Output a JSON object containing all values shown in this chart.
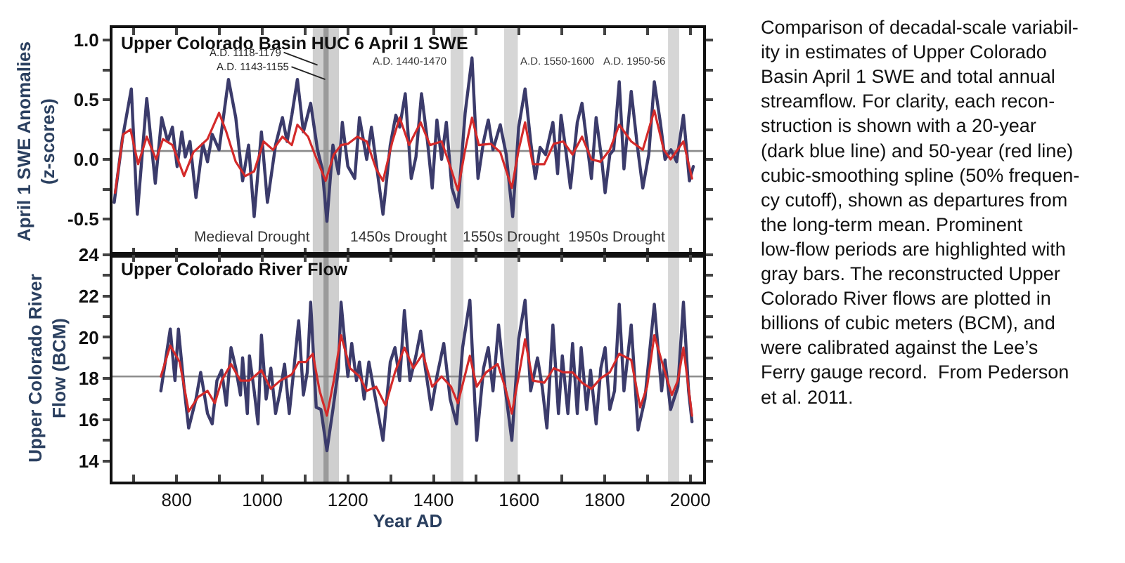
{
  "chart_data": [
    {
      "type": "line",
      "title": "Upper Colorado Basin HUC 6 April 1 SWE",
      "ylabel": "April 1 SWE Anomalies\n(z-scores)",
      "xlim": [
        650,
        2030
      ],
      "xticks": [
        {
          "value": 700,
          "label": null
        },
        {
          "value": 800,
          "label": null
        },
        {
          "value": 900,
          "label": null
        },
        {
          "value": 1000,
          "label": null
        },
        {
          "value": 1100,
          "label": null
        },
        {
          "value": 1200,
          "label": null
        },
        {
          "value": 1300,
          "label": null
        },
        {
          "value": 1400,
          "label": null
        },
        {
          "value": 1500,
          "label": null
        },
        {
          "value": 1600,
          "label": null
        },
        {
          "value": 1700,
          "label": null
        },
        {
          "value": 1800,
          "label": null
        },
        {
          "value": 1900,
          "label": null
        },
        {
          "value": 2000,
          "label": null
        }
      ],
      "ylim": [
        -0.8,
        1.1
      ],
      "yticks": [
        {
          "value": -0.5,
          "label": "-0.5"
        },
        {
          "value": -0.25,
          "label": null
        },
        {
          "value": 0,
          "label": "0.0"
        },
        {
          "value": 0.25,
          "label": null
        },
        {
          "value": 0.5,
          "label": "0.5"
        },
        {
          "value": 0.75,
          "label": null
        },
        {
          "value": 1.0,
          "label": "1.0"
        }
      ],
      "tick_labels": "y",
      "grid": false,
      "series": [
        {
          "color": "#3b3b6b",
          "x": [
            654,
            673,
            694,
            708,
            730,
            750,
            765,
            779,
            790,
            801,
            812,
            820,
            831,
            845,
            861,
            872,
            883,
            899,
            921,
            938,
            954,
            968,
            981,
            998,
            1012,
            1031,
            1047,
            1058,
            1069,
            1082,
            1096,
            1113,
            1129,
            1140,
            1151,
            1165,
            1178,
            1187,
            1200,
            1216,
            1227,
            1244,
            1255,
            1282,
            1299,
            1312,
            1321,
            1334,
            1348,
            1359,
            1372,
            1386,
            1397,
            1408,
            1419,
            1430,
            1443,
            1457,
            1474,
            1490,
            1504,
            1517,
            1528,
            1539,
            1556,
            1570,
            1585,
            1599,
            1614,
            1627,
            1638,
            1649,
            1662,
            1679,
            1690,
            1698,
            1709,
            1720,
            1736,
            1747,
            1758,
            1769,
            1780,
            1793,
            1801,
            1812,
            1821,
            1834,
            1845,
            1862,
            1876,
            1889,
            1903,
            1916,
            1930,
            1941,
            1955,
            1968,
            1984,
            1998,
            2007
          ],
          "values": [
            -0.36,
            0.17,
            0.59,
            -0.46,
            0.51,
            -0.2,
            0.35,
            0.15,
            0.27,
            -0.06,
            0.23,
            0.02,
            0.15,
            -0.32,
            0.13,
            -0.02,
            0.21,
            0.08,
            0.67,
            0.35,
            -0.18,
            0.12,
            -0.48,
            0.23,
            -0.36,
            0.12,
            0.35,
            0.15,
            0.37,
            0.67,
            0.23,
            0.47,
            0.08,
            -0.08,
            -0.52,
            0.12,
            -0.12,
            0.31,
            -0.06,
            -0.16,
            0.35,
            0.0,
            0.27,
            -0.46,
            0.12,
            0.37,
            0.27,
            0.55,
            -0.16,
            0.02,
            0.55,
            0.15,
            -0.24,
            0.33,
            0.0,
            0.31,
            -0.24,
            -0.4,
            0.39,
            0.85,
            -0.16,
            0.15,
            0.33,
            0.08,
            0.29,
            0.04,
            -0.48,
            0.27,
            0.59,
            0.15,
            -0.16,
            0.1,
            0.04,
            0.31,
            -0.12,
            0.37,
            0.08,
            -0.24,
            0.31,
            0.47,
            0.15,
            -0.16,
            0.35,
            0.0,
            -0.28,
            0.04,
            0.08,
            0.65,
            -0.08,
            0.57,
            0.12,
            -0.24,
            0.04,
            0.65,
            0.31,
            0.0,
            0.08,
            -0.02,
            0.37,
            -0.18,
            -0.06
          ]
        },
        {
          "color": "#d42a2a",
          "x": [
            656,
            675,
            692,
            710,
            730,
            752,
            768,
            790,
            817,
            839,
            872,
            899,
            916,
            938,
            960,
            981,
            1003,
            1025,
            1047,
            1069,
            1082,
            1107,
            1123,
            1148,
            1167,
            1184,
            1200,
            1222,
            1244,
            1266,
            1282,
            1304,
            1321,
            1343,
            1370,
            1392,
            1419,
            1441,
            1457,
            1474,
            1490,
            1506,
            1534,
            1556,
            1583,
            1599,
            1614,
            1632,
            1659,
            1681,
            1703,
            1725,
            1747,
            1769,
            1790,
            1812,
            1834,
            1862,
            1889,
            1916,
            1938,
            1954,
            1984,
            2004
          ],
          "values": [
            -0.28,
            0.21,
            0.25,
            -0.04,
            0.19,
            0.0,
            0.17,
            0.12,
            -0.14,
            0.06,
            0.17,
            0.39,
            0.23,
            -0.02,
            -0.14,
            -0.1,
            0.15,
            0.08,
            0.19,
            0.12,
            0.29,
            0.19,
            0.04,
            -0.18,
            0.04,
            0.12,
            0.13,
            0.19,
            0.15,
            -0.08,
            -0.18,
            0.15,
            0.35,
            0.12,
            0.31,
            0.12,
            0.15,
            -0.08,
            -0.26,
            0.08,
            0.35,
            0.12,
            0.13,
            0.06,
            -0.24,
            0.08,
            0.31,
            -0.04,
            -0.04,
            0.13,
            0.15,
            0.04,
            0.19,
            0.0,
            -0.02,
            0.08,
            0.29,
            0.15,
            0.08,
            0.41,
            0.08,
            0.0,
            0.15,
            -0.16
          ]
        }
      ],
      "ref_lines": [
        {
          "axis": "y",
          "value": 0.07,
          "color": "#8c8c8c"
        }
      ],
      "bands": [
        {
          "axis": "x",
          "from": 1118,
          "to": 1179,
          "color": "#cfcfcf"
        },
        {
          "axis": "x",
          "from": 1143,
          "to": 1155,
          "color": "#9a9a9a"
        },
        {
          "axis": "x",
          "from": 1440,
          "to": 1470,
          "color": "#d6d6d6"
        },
        {
          "axis": "x",
          "from": 1565,
          "to": 1597,
          "color": "#d6d6d6"
        },
        {
          "axis": "x",
          "from": 1948,
          "to": 1974,
          "color": "#d6d6d6"
        }
      ],
      "annotations": [
        {
          "text": "A.D. 1118-1179",
          "x": 1129,
          "y": 0.79
        },
        {
          "text": "A.D. 1143-1155",
          "x": 1147,
          "y": 0.67
        },
        {
          "text": "A.D. 1440-1470",
          "x": 1440,
          "y": 0.82
        },
        {
          "text": "A.D. 1550-1600",
          "x": 1597,
          "y": 0.82
        },
        {
          "text": "A.D. 1950-56",
          "x": 1948,
          "y": 0.82
        },
        {
          "text": "Medieval Drought",
          "x": 1118,
          "y": -0.65
        },
        {
          "text": "1450s Drought",
          "x": 1440,
          "y": -0.65
        },
        {
          "text": "1550s Drought",
          "x": 1581,
          "y": -0.65
        },
        {
          "text": "1950s Drought",
          "x": 1948,
          "y": -0.65
        },
        "Comparison of decadal-scale variabil-\nity in estimates of Upper Colorado\nBasin April 1 SWE and total annual\nstreamflow. For clarity, each recon-\nstruction is shown with a 20-year\n(dark blue line) and 50-year (red line)\ncubic-smoothing spline (50% frequen-\ncy cutoff), shown as departures from\nthe long-term mean. Prominent\nlow-flow periods are highlighted with\ngray bars. The reconstructed Upper\nColorado River flows are plotted in\nbillions of cubic meters (BCM), and\nwere calibrated against the Lee’s\nFerry gauge record.  From Pederson\net al. 2011."
      ]
    },
    {
      "type": "line",
      "title": "Upper Colorado River Flow",
      "ylabel": "Upper Colorado River\nFlow (BCM)",
      "xlabel": "Year AD",
      "xlim": [
        650,
        2030
      ],
      "xticks": [
        {
          "value": 700,
          "label": null
        },
        800,
        {
          "value": 900,
          "label": null
        },
        1000,
        {
          "value": 1100,
          "label": null
        },
        1200,
        {
          "value": 1300,
          "label": null
        },
        1400,
        {
          "value": 1500,
          "label": null
        },
        1600,
        {
          "value": 1700,
          "label": null
        },
        1800,
        {
          "value": 1900,
          "label": null
        },
        2000
      ],
      "ylim": [
        13,
        24
      ],
      "yticks": [
        14,
        {
          "value": 15,
          "label": null
        },
        16,
        {
          "value": 17,
          "label": null
        },
        18,
        {
          "value": 19,
          "label": null
        },
        20,
        {
          "value": 21,
          "label": null
        },
        22,
        {
          "value": 23,
          "label": null
        },
        24
      ],
      "grid": false,
      "series": [
        {
          "color": "#3b3b6b",
          "x": [
            763,
            785,
            796,
            804,
            817,
            828,
            845,
            856,
            872,
            883,
            894,
            905,
            916,
            927,
            938,
            949,
            954,
            965,
            970,
            981,
            990,
            998,
            1009,
            1020,
            1031,
            1042,
            1052,
            1063,
            1074,
            1085,
            1096,
            1105,
            1113,
            1126,
            1137,
            1151,
            1165,
            1178,
            1184,
            1200,
            1209,
            1220,
            1227,
            1238,
            1249,
            1282,
            1299,
            1310,
            1321,
            1332,
            1345,
            1359,
            1370,
            1381,
            1395,
            1408,
            1424,
            1439,
            1454,
            1468,
            1485,
            1501,
            1517,
            1528,
            1539,
            1552,
            1567,
            1583,
            1599,
            1614,
            1627,
            1643,
            1654,
            1665,
            1679,
            1692,
            1701,
            1714,
            1725,
            1736,
            1745,
            1758,
            1767,
            1780,
            1791,
            1801,
            1812,
            1823,
            1834,
            1845,
            1862,
            1878,
            1894,
            1916,
            1933,
            1941,
            1954,
            1971,
            1984,
            1996,
            2004
          ],
          "values": [
            17.4,
            20.4,
            17.9,
            20.4,
            17.6,
            15.6,
            17.0,
            18.3,
            16.3,
            15.8,
            17.9,
            18.4,
            16.7,
            19.5,
            18.5,
            17.2,
            19.0,
            16.3,
            19.1,
            17.4,
            15.8,
            20.1,
            17.0,
            18.5,
            16.3,
            17.4,
            18.7,
            16.3,
            18.5,
            20.8,
            17.2,
            18.3,
            21.7,
            16.6,
            16.5,
            14.5,
            16.5,
            18.5,
            21.7,
            18.1,
            19.7,
            17.9,
            18.8,
            17.0,
            18.8,
            15.0,
            18.8,
            19.5,
            17.9,
            21.3,
            17.9,
            19.1,
            20.3,
            18.5,
            16.5,
            18.1,
            19.7,
            17.0,
            15.8,
            19.5,
            21.8,
            15.0,
            18.5,
            19.5,
            17.4,
            20.6,
            17.6,
            15.0,
            19.9,
            21.8,
            17.4,
            19.0,
            17.6,
            15.6,
            20.6,
            16.3,
            19.1,
            16.3,
            19.7,
            16.3,
            19.5,
            16.5,
            18.4,
            15.8,
            18.5,
            19.5,
            16.5,
            17.4,
            21.6,
            17.4,
            20.6,
            15.5,
            17.0,
            21.6,
            17.4,
            18.9,
            16.5,
            17.6,
            21.7,
            17.4,
            15.9
          ]
        },
        {
          "color": "#d42a2a",
          "x": [
            763,
            785,
            807,
            828,
            850,
            872,
            889,
            905,
            927,
            949,
            970,
            998,
            1020,
            1042,
            1069,
            1085,
            1102,
            1118,
            1134,
            1151,
            1167,
            1184,
            1205,
            1227,
            1244,
            1266,
            1288,
            1310,
            1332,
            1353,
            1375,
            1397,
            1419,
            1441,
            1457,
            1485,
            1501,
            1523,
            1550,
            1567,
            1583,
            1599,
            1614,
            1632,
            1659,
            1681,
            1703,
            1725,
            1747,
            1769,
            1790,
            1812,
            1834,
            1862,
            1883,
            1899,
            1916,
            1938,
            1957,
            1971,
            1984,
            2004
          ],
          "values": [
            18.1,
            19.6,
            18.8,
            16.4,
            17.1,
            17.4,
            16.8,
            17.9,
            18.7,
            17.9,
            17.9,
            18.4,
            17.5,
            17.9,
            18.2,
            18.8,
            18.8,
            19.2,
            17.4,
            16.2,
            17.9,
            20.1,
            18.5,
            18.1,
            17.4,
            17.6,
            16.7,
            18.3,
            19.5,
            18.5,
            19.2,
            17.6,
            18.1,
            17.6,
            16.8,
            19.1,
            17.6,
            18.3,
            18.7,
            17.6,
            16.3,
            18.1,
            19.9,
            17.9,
            17.8,
            18.5,
            18.3,
            18.3,
            17.8,
            17.5,
            18.0,
            18.3,
            19.2,
            18.9,
            16.6,
            17.6,
            20.1,
            18.5,
            17.2,
            17.9,
            19.5,
            16.2
          ]
        }
      ],
      "ref_lines": [
        {
          "axis": "y",
          "value": 18.1,
          "color": "#8c8c8c"
        }
      ],
      "bands": [
        {
          "axis": "x",
          "from": 1118,
          "to": 1179,
          "color": "#cfcfcf"
        },
        {
          "axis": "x",
          "from": 1143,
          "to": 1155,
          "color": "#9a9a9a"
        },
        {
          "axis": "x",
          "from": 1440,
          "to": 1470,
          "color": "#d6d6d6"
        },
        {
          "axis": "x",
          "from": 1565,
          "to": 1597,
          "color": "#d6d6d6"
        },
        {
          "axis": "x",
          "from": 1948,
          "to": 1974,
          "color": "#d6d6d6"
        }
      ]
    }
  ]
}
